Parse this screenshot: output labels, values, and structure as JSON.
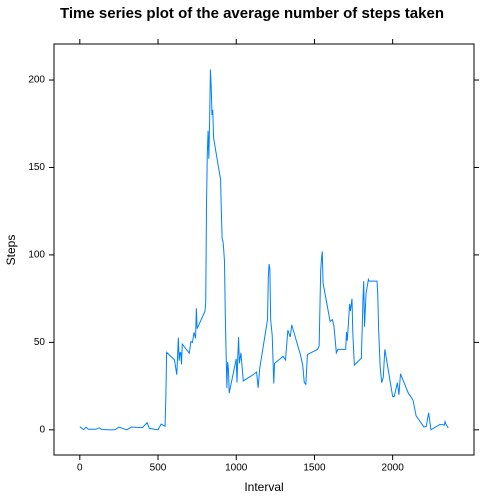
{
  "chart_data": {
    "type": "line",
    "title": "Time series plot of the average number of steps taken",
    "x_label": "Interval",
    "y_label": "Steps",
    "x": [
      0,
      25,
      40,
      55,
      100,
      125,
      140,
      200,
      225,
      250,
      300,
      330,
      400,
      430,
      445,
      500,
      520,
      545,
      550,
      555,
      605,
      620,
      630,
      635,
      640,
      645,
      650,
      655,
      700,
      710,
      720,
      730,
      740,
      745,
      750,
      800,
      805,
      810,
      815,
      820,
      825,
      830,
      835,
      840,
      845,
      850,
      855,
      900,
      905,
      910,
      915,
      920,
      925,
      930,
      935,
      940,
      945,
      950,
      955,
      1000,
      1005,
      1010,
      1015,
      1020,
      1030,
      1045,
      1100,
      1130,
      1140,
      1150,
      1200,
      1205,
      1210,
      1215,
      1220,
      1230,
      1240,
      1245,
      1300,
      1315,
      1330,
      1345,
      1355,
      1410,
      1425,
      1435,
      1445,
      1455,
      1520,
      1530,
      1540,
      1545,
      1550,
      1555,
      1600,
      1615,
      1625,
      1640,
      1650,
      1700,
      1705,
      1710,
      1725,
      1730,
      1740,
      1745,
      1755,
      1800,
      1810,
      1815,
      1820,
      1830,
      1845,
      1850,
      1900,
      1905,
      1910,
      1920,
      1930,
      1940,
      1950,
      2000,
      2010,
      2030,
      2040,
      2050,
      2100,
      2115,
      2130,
      2150,
      2200,
      2215,
      2230,
      2245,
      2300,
      2320,
      2330,
      2335,
      2340,
      2355
    ],
    "series": [
      {
        "name": "Steps",
        "color": "#0080ff",
        "values": [
          1.7,
          0.1,
          1.5,
          0.3,
          0.3,
          1.1,
          0.2,
          0,
          0.1,
          1.5,
          0,
          1.6,
          1.2,
          4.1,
          0.8,
          0,
          3.3,
          2,
          18.2,
          44.3,
          40,
          31.5,
          52.7,
          39.5,
          44,
          44.2,
          37.4,
          49,
          43.8,
          50.5,
          49.9,
          55.7,
          52.3,
          69.5,
          57.8,
          67.8,
          73,
          129,
          158,
          171,
          155,
          177,
          206,
          196,
          180,
          183,
          167,
          143,
          124,
          109,
          108,
          103,
          96,
          66,
          45,
          24,
          38.8,
          35,
          21,
          40.6,
          27,
          42,
          53,
          38,
          44,
          28,
          31,
          33,
          24,
          35,
          63,
          87,
          94.8,
          92,
          63,
          54,
          26.5,
          38,
          42,
          40,
          57,
          53,
          60,
          43,
          37,
          27,
          26,
          43,
          46,
          48,
          91,
          98,
          102,
          84,
          62,
          63,
          59,
          44,
          46,
          46,
          56,
          51,
          72,
          68,
          75,
          56,
          37,
          41,
          74,
          85,
          59,
          78,
          86,
          85,
          85,
          77,
          58,
          36,
          27,
          30,
          46,
          19,
          19,
          27,
          20,
          32,
          21,
          19,
          17,
          8,
          1.6,
          2,
          9.7,
          0,
          3,
          3,
          2.6,
          4.7,
          3.3,
          1.1
        ]
      }
    ],
    "xlim": [
      -165,
      2520
    ],
    "ylim": [
      -14.4,
      220.6
    ],
    "xticks": [
      0,
      500,
      1000,
      1500,
      2000
    ],
    "yticks": [
      0,
      50,
      100,
      150,
      200
    ]
  }
}
